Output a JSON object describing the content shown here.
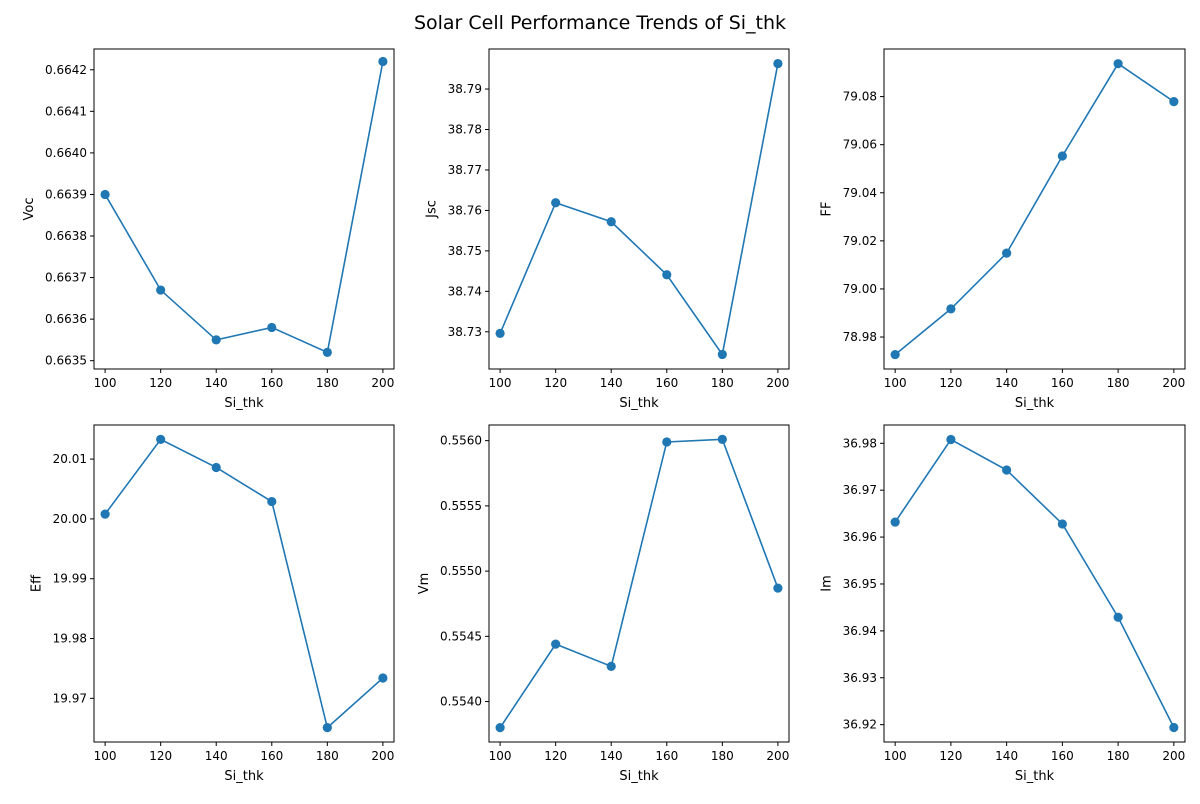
{
  "figure": {
    "title": "Solar Cell Performance Trends of Si_thk"
  },
  "colors": {
    "line": "#1f77b4",
    "axis": "#000000",
    "background": "#ffffff"
  },
  "chart_data": [
    {
      "type": "line",
      "xlabel": "Si_thk",
      "ylabel": "Voc",
      "x": [
        100,
        120,
        140,
        160,
        180,
        200
      ],
      "series": [
        {
          "values": [
            0.6639,
            0.66367,
            0.66355,
            0.66358,
            0.66352,
            0.66422
          ]
        }
      ],
      "xlim": [
        96,
        204
      ],
      "ylim": [
        0.66348,
        0.66425
      ],
      "xticks": [
        100,
        120,
        140,
        160,
        180,
        200
      ],
      "yticks": [
        0.6635,
        0.6636,
        0.6637,
        0.6638,
        0.6639,
        0.664,
        0.6641,
        0.6642
      ],
      "ytick_decimals": 4,
      "grid": false,
      "markers": "circle"
    },
    {
      "type": "line",
      "xlabel": "Si_thk",
      "ylabel": "Jsc",
      "x": [
        100,
        120,
        140,
        160,
        180,
        200
      ],
      "series": [
        {
          "values": [
            38.7296,
            38.7619,
            38.7572,
            38.7441,
            38.7244,
            38.7963
          ]
        }
      ],
      "xlim": [
        96,
        204
      ],
      "ylim": [
        38.7208,
        38.7999
      ],
      "xticks": [
        100,
        120,
        140,
        160,
        180,
        200
      ],
      "yticks": [
        38.73,
        38.74,
        38.75,
        38.76,
        38.77,
        38.78,
        38.79
      ],
      "ytick_decimals": 2,
      "grid": false,
      "markers": "circle"
    },
    {
      "type": "line",
      "xlabel": "Si_thk",
      "ylabel": "FF",
      "x": [
        100,
        120,
        140,
        160,
        180,
        200
      ],
      "series": [
        {
          "values": [
            78.9727,
            78.9917,
            79.0149,
            79.0553,
            79.0937,
            79.0779
          ]
        }
      ],
      "xlim": [
        96,
        204
      ],
      "ylim": [
        78.9667,
        79.0998
      ],
      "xticks": [
        100,
        120,
        140,
        160,
        180,
        200
      ],
      "yticks": [
        78.98,
        79.0,
        79.02,
        79.04,
        79.06,
        79.08
      ],
      "ytick_decimals": 2,
      "grid": false,
      "markers": "circle"
    },
    {
      "type": "line",
      "xlabel": "Si_thk",
      "ylabel": "Eff",
      "x": [
        100,
        120,
        140,
        160,
        180,
        200
      ],
      "series": [
        {
          "values": [
            20.0008,
            20.0133,
            20.0086,
            20.0029,
            19.9651,
            19.9734
          ]
        }
      ],
      "xlim": [
        96,
        204
      ],
      "ylim": [
        19.9627,
        20.0157
      ],
      "xticks": [
        100,
        120,
        140,
        160,
        180,
        200
      ],
      "yticks": [
        19.97,
        19.98,
        19.99,
        20.0,
        20.01
      ],
      "ytick_decimals": 2,
      "grid": false,
      "markers": "circle"
    },
    {
      "type": "line",
      "xlabel": "Si_thk",
      "ylabel": "Vm",
      "x": [
        100,
        120,
        140,
        160,
        180,
        200
      ],
      "series": [
        {
          "values": [
            0.5538,
            0.55444,
            0.55427,
            0.55599,
            0.55601,
            0.55487
          ]
        }
      ],
      "xlim": [
        96,
        204
      ],
      "ylim": [
        0.55369,
        0.55612
      ],
      "xticks": [
        100,
        120,
        140,
        160,
        180,
        200
      ],
      "yticks": [
        0.554,
        0.5545,
        0.555,
        0.5555,
        0.556
      ],
      "ytick_decimals": 4,
      "grid": false,
      "markers": "circle"
    },
    {
      "type": "line",
      "xlabel": "Si_thk",
      "ylabel": "Im",
      "x": [
        100,
        120,
        140,
        160,
        180,
        200
      ],
      "series": [
        {
          "values": [
            36.9632,
            36.9808,
            36.9743,
            36.9628,
            36.9429,
            36.9194
          ]
        }
      ],
      "xlim": [
        96,
        204
      ],
      "ylim": [
        36.9163,
        36.9839
      ],
      "xticks": [
        100,
        120,
        140,
        160,
        180,
        200
      ],
      "yticks": [
        36.92,
        36.93,
        36.94,
        36.95,
        36.96,
        36.97,
        36.98
      ],
      "ytick_decimals": 2,
      "grid": false,
      "markers": "circle"
    }
  ]
}
